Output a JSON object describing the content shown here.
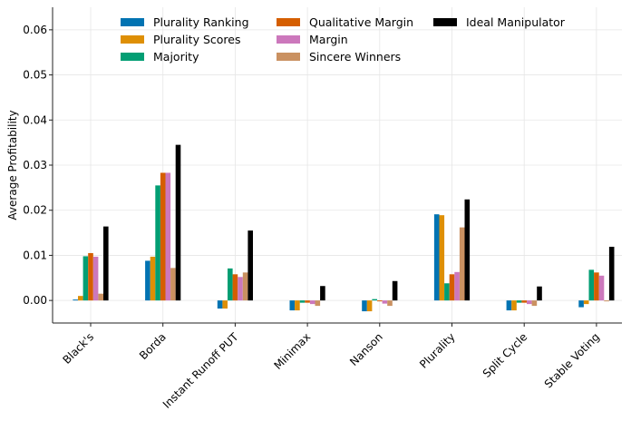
{
  "chart_data": {
    "type": "bar",
    "xlabel": "",
    "ylabel": "Average Profitability",
    "ylim": [
      -0.005,
      0.065
    ],
    "yticks": [
      0.0,
      0.01,
      0.02,
      0.03,
      0.04,
      0.05,
      0.06
    ],
    "ytick_labels": [
      "0.00",
      "0.01",
      "0.02",
      "0.03",
      "0.04",
      "0.05",
      "0.06"
    ],
    "grid": true,
    "legend": {
      "placement": "top",
      "columns": 3
    },
    "categories": [
      "Black's",
      "Borda",
      "Instant Runoff PUT",
      "Minimax",
      "Nanson",
      "Plurality",
      "Split Cycle",
      "Stable Voting"
    ],
    "series": [
      {
        "name": "Plurality Ranking",
        "color": "#0173b2",
        "values": [
          0.0002,
          0.0088,
          -0.0018,
          -0.0022,
          -0.0024,
          0.0191,
          -0.0022,
          -0.0015
        ]
      },
      {
        "name": "Plurality Scores",
        "color": "#de8f05",
        "values": [
          0.001,
          0.0097,
          -0.0018,
          -0.0022,
          -0.0024,
          0.0189,
          -0.0022,
          -0.0008
        ]
      },
      {
        "name": "Majority",
        "color": "#029e73",
        "values": [
          0.0098,
          0.0255,
          0.0071,
          -0.0005,
          0.0003,
          0.0038,
          -0.0005,
          0.0068
        ]
      },
      {
        "name": "Qualitative Margin",
        "color": "#d55e00",
        "values": [
          0.0105,
          0.0283,
          0.0058,
          -0.0005,
          -0.0002,
          0.0058,
          -0.0005,
          0.0062
        ]
      },
      {
        "name": "Margin",
        "color": "#cc78bc",
        "values": [
          0.0097,
          0.0283,
          0.0052,
          -0.0008,
          -0.0007,
          0.0063,
          -0.0008,
          0.0055
        ]
      },
      {
        "name": "Sincere Winners",
        "color": "#ca9161",
        "values": [
          0.0015,
          0.0072,
          0.0062,
          -0.0012,
          -0.0012,
          0.0162,
          -0.0012,
          -0.0002
        ]
      },
      {
        "name": "Ideal Manipulator",
        "color": "#000000",
        "values": [
          0.0164,
          0.0345,
          0.0155,
          0.0032,
          0.0043,
          0.0224,
          0.0031,
          0.0119
        ]
      }
    ]
  }
}
